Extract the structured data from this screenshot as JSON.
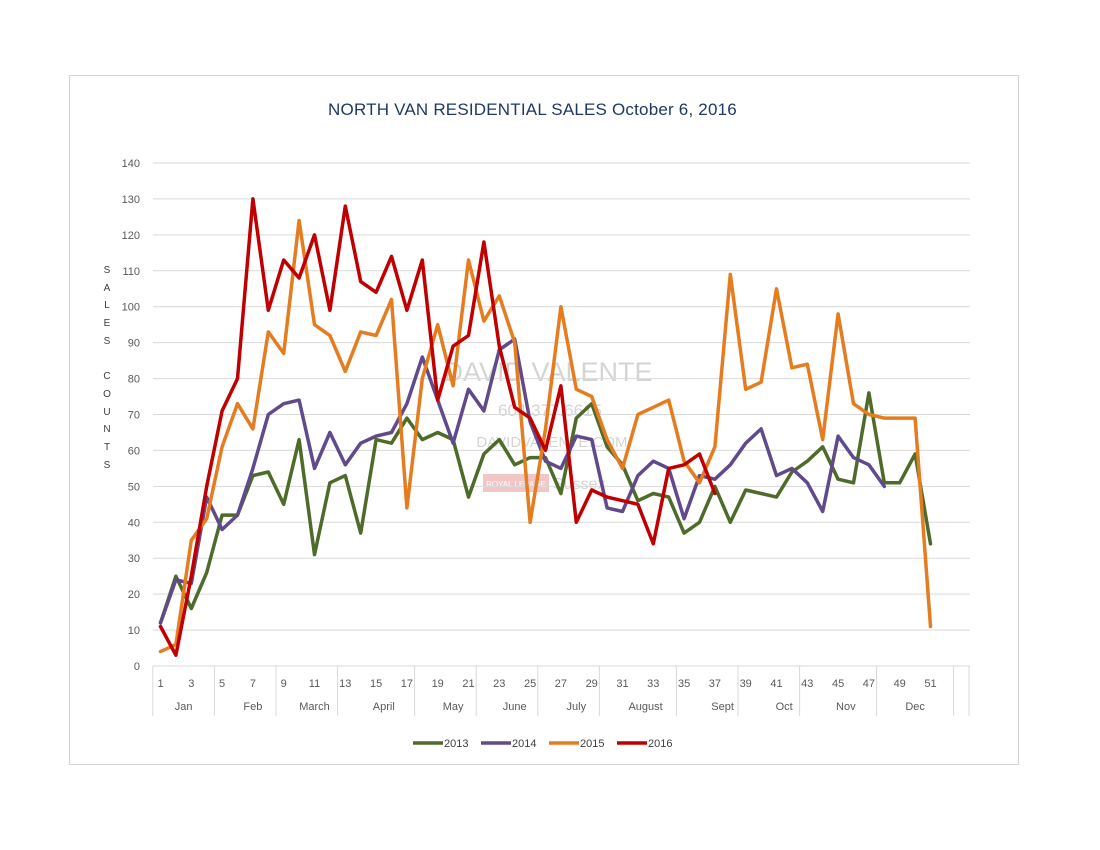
{
  "chart_data": {
    "type": "line",
    "title": "NORTH VAN RESIDENTIAL SALES October 6, 2016",
    "ylabel": "SALES COUNTS",
    "ylabel_lines": [
      "S",
      "A",
      "L",
      "E",
      "S",
      "",
      "C",
      "O",
      "U",
      "N",
      "T",
      "S"
    ],
    "ylim": [
      0,
      140
    ],
    "yticks": [
      0,
      10,
      20,
      30,
      40,
      50,
      60,
      70,
      80,
      90,
      100,
      110,
      120,
      130,
      140
    ],
    "xlim": [
      1,
      52
    ],
    "xtick_labels": [
      1,
      3,
      5,
      7,
      9,
      11,
      13,
      15,
      17,
      19,
      21,
      23,
      25,
      27,
      29,
      31,
      33,
      35,
      37,
      39,
      41,
      43,
      45,
      47,
      49,
      51
    ],
    "month_labels": [
      {
        "label": "Jan",
        "center": 2.5
      },
      {
        "label": "Feb",
        "center": 7.0
      },
      {
        "label": "March",
        "center": 11.0
      },
      {
        "label": "April",
        "center": 15.5
      },
      {
        "label": "May",
        "center": 20.0
      },
      {
        "label": "June",
        "center": 24.0
      },
      {
        "label": "July",
        "center": 28.0
      },
      {
        "label": "August",
        "center": 32.5
      },
      {
        "label": "Sept",
        "center": 37.5
      },
      {
        "label": "Oct",
        "center": 41.5
      },
      {
        "label": "Nov",
        "center": 45.5
      },
      {
        "label": "Dec",
        "center": 50.0
      }
    ],
    "month_boundaries": [
      0.5,
      4.5,
      8.5,
      12.5,
      17.5,
      21.5,
      25.5,
      29.5,
      34.5,
      38.5,
      42.5,
      47.5,
      52.5,
      53.5
    ],
    "grid": true,
    "legend_position": "bottom",
    "series": [
      {
        "name": "2013",
        "color": "#4e6b2a",
        "values": [
          12,
          25,
          16,
          26,
          42,
          42,
          53,
          54,
          45,
          63,
          31,
          51,
          53,
          37,
          63,
          62,
          69,
          63,
          65,
          63,
          47,
          59,
          63,
          56,
          58,
          58,
          48,
          69,
          73,
          61,
          56,
          46,
          48,
          47,
          37,
          40,
          50,
          40,
          49,
          48,
          47,
          54,
          57,
          61,
          52,
          51,
          76,
          51,
          51,
          59,
          34
        ]
      },
      {
        "name": "2014",
        "color": "#604a8c",
        "values": [
          12,
          24,
          23,
          47,
          38,
          42,
          55,
          70,
          73,
          74,
          55,
          65,
          56,
          62,
          64,
          65,
          73,
          86,
          74,
          62,
          77,
          71,
          88,
          91,
          68,
          57,
          55,
          64,
          63,
          44,
          43,
          53,
          57,
          55,
          41,
          53,
          52,
          56,
          62,
          66,
          53,
          55,
          51,
          43,
          64,
          58,
          56,
          50
        ]
      },
      {
        "name": "2015",
        "color": "#e57c1f",
        "values": [
          4,
          6,
          35,
          41,
          61,
          73,
          66,
          93,
          87,
          124,
          95,
          92,
          82,
          93,
          92,
          102,
          44,
          80,
          95,
          78,
          113,
          96,
          103,
          90,
          40,
          66,
          100,
          77,
          75,
          63,
          55,
          70,
          72,
          74,
          57,
          51,
          61,
          109,
          77,
          79,
          105,
          83,
          84,
          63,
          98,
          73,
          70,
          69,
          69,
          69,
          11
        ]
      },
      {
        "name": "2016",
        "color": "#c00000",
        "values": [
          11,
          3,
          25,
          50,
          71,
          80,
          130,
          99,
          113,
          108,
          120,
          99,
          128,
          107,
          104,
          114,
          99,
          113,
          74,
          89,
          92,
          118,
          89,
          72,
          69,
          60,
          78,
          40,
          49,
          47,
          46,
          45,
          34,
          55,
          56,
          59,
          48
        ]
      }
    ]
  },
  "watermark": {
    "line1": "DAVID VALENTE",
    "line2": "604.377.6615",
    "line3": "DAVIDVALENTE.COM",
    "logo": "ROYAL LEPAGE",
    "logo2": "Sussex"
  }
}
